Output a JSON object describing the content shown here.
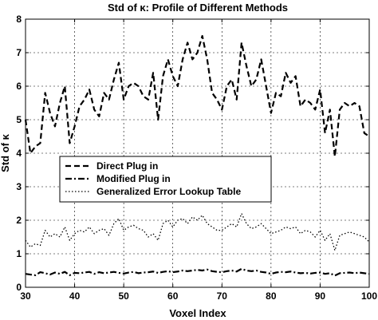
{
  "chart_data": {
    "type": "line",
    "title": "Std of κ: Profile of Different Methods",
    "xlabel": "Voxel Index",
    "ylabel": "Std of κ",
    "xlim": [
      30,
      100
    ],
    "ylim": [
      0,
      8
    ],
    "xticks": [
      "30",
      "40",
      "50",
      "60",
      "70",
      "80",
      "90",
      "100"
    ],
    "yticks": [
      "0",
      "1",
      "2",
      "3",
      "4",
      "5",
      "6",
      "7",
      "8"
    ],
    "grid": true,
    "legend_position": "center-left",
    "x": [
      30,
      31,
      32,
      33,
      34,
      35,
      36,
      37,
      38,
      39,
      40,
      41,
      42,
      43,
      44,
      45,
      46,
      47,
      48,
      49,
      50,
      51,
      52,
      53,
      54,
      55,
      56,
      57,
      58,
      59,
      60,
      61,
      62,
      63,
      64,
      65,
      66,
      67,
      68,
      69,
      70,
      71,
      72,
      73,
      74,
      75,
      76,
      77,
      78,
      79,
      80,
      81,
      82,
      83,
      84,
      85,
      86,
      87,
      88,
      89,
      90,
      91,
      92,
      93,
      94,
      95,
      96,
      97,
      98,
      99,
      100
    ],
    "series": [
      {
        "name": "Direct Plug in",
        "style": "dashed",
        "values": [
          5.0,
          4.0,
          4.2,
          4.3,
          5.8,
          5.2,
          4.8,
          5.5,
          6.0,
          4.3,
          4.8,
          5.4,
          5.6,
          5.9,
          5.3,
          5.1,
          5.8,
          5.6,
          6.2,
          6.7,
          5.6,
          6.0,
          6.1,
          6.0,
          5.7,
          5.6,
          6.4,
          5.0,
          6.3,
          6.8,
          6.3,
          6.0,
          6.8,
          7.3,
          6.8,
          7.0,
          7.5,
          6.8,
          5.8,
          5.6,
          5.3,
          6.0,
          6.2,
          5.6,
          7.3,
          6.6,
          6.0,
          6.2,
          6.8,
          6.0,
          5.2,
          5.8,
          5.7,
          6.4,
          6.1,
          6.3,
          5.4,
          5.6,
          5.5,
          5.3,
          5.9,
          4.6,
          5.3,
          3.9,
          5.3,
          5.5,
          5.4,
          5.5,
          5.4,
          4.6,
          4.5
        ]
      },
      {
        "name": "Modified Plug in",
        "style": "dashdot",
        "values": [
          0.4,
          0.38,
          0.36,
          0.45,
          0.42,
          0.38,
          0.44,
          0.4,
          0.46,
          0.36,
          0.43,
          0.42,
          0.44,
          0.46,
          0.4,
          0.45,
          0.42,
          0.44,
          0.46,
          0.43,
          0.41,
          0.44,
          0.46,
          0.42,
          0.44,
          0.45,
          0.47,
          0.43,
          0.46,
          0.48,
          0.45,
          0.47,
          0.5,
          0.48,
          0.5,
          0.52,
          0.5,
          0.53,
          0.48,
          0.46,
          0.45,
          0.48,
          0.5,
          0.47,
          0.55,
          0.5,
          0.48,
          0.5,
          0.46,
          0.44,
          0.4,
          0.44,
          0.46,
          0.45,
          0.47,
          0.44,
          0.42,
          0.43,
          0.41,
          0.43,
          0.44,
          0.4,
          0.42,
          0.35,
          0.42,
          0.43,
          0.44,
          0.42,
          0.44,
          0.42,
          0.4
        ]
      },
      {
        "name": "Generalized Error Lookup Table",
        "style": "dotted",
        "values": [
          1.4,
          1.2,
          1.3,
          1.25,
          1.7,
          1.5,
          1.6,
          1.5,
          1.8,
          1.4,
          1.6,
          1.7,
          1.65,
          1.8,
          1.6,
          1.7,
          1.75,
          1.55,
          1.9,
          2.05,
          1.7,
          1.8,
          1.85,
          1.75,
          1.7,
          1.5,
          1.6,
          1.4,
          1.9,
          2.0,
          1.8,
          2.0,
          2.05,
          1.9,
          2.1,
          2.0,
          2.15,
          1.9,
          1.8,
          1.7,
          1.7,
          1.8,
          1.9,
          1.8,
          2.2,
          1.9,
          1.75,
          1.8,
          1.9,
          1.75,
          1.6,
          1.65,
          1.7,
          1.8,
          1.75,
          1.8,
          1.6,
          1.7,
          1.65,
          1.5,
          1.7,
          1.4,
          1.6,
          1.1,
          1.55,
          1.6,
          1.65,
          1.6,
          1.55,
          1.5,
          1.35
        ]
      }
    ]
  }
}
